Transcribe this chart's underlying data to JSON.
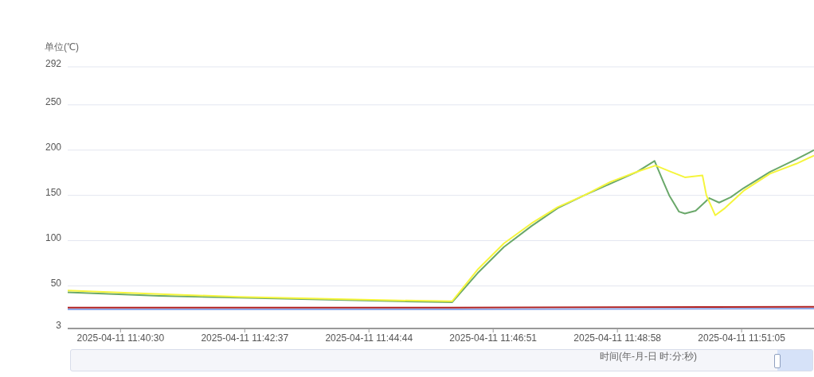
{
  "chart_data": {
    "type": "line",
    "ylabel": "单位(℃)",
    "xlabel": "时间(年-月-日 时:分:秒)",
    "xlim": [
      "2025-04-11T11:39:36",
      "2025-04-11T11:52:19"
    ],
    "xticks": [
      {
        "value": "2025-04-11T11:40:30",
        "label": "2025-04-11 11:40:30"
      },
      {
        "value": "2025-04-11T11:42:37",
        "label": "2025-04-11 11:42:37"
      },
      {
        "value": "2025-04-11T11:44:44",
        "label": "2025-04-11 11:44:44"
      },
      {
        "value": "2025-04-11T11:46:51",
        "label": "2025-04-11 11:46:51"
      },
      {
        "value": "2025-04-11T11:48:58",
        "label": "2025-04-11 11:48:58"
      },
      {
        "value": "2025-04-11T11:51:05",
        "label": "2025-04-11 11:51:05"
      }
    ],
    "ylim": [
      3,
      292
    ],
    "yticks": [
      3,
      50,
      100,
      150,
      200,
      250,
      292
    ],
    "grid": "y",
    "marker": "none",
    "line_style": "solid",
    "series": [
      {
        "color": "#6aa86a",
        "x": [
          "2025-04-11T11:39:36",
          "2025-04-11T11:41:10",
          "2025-04-11T11:42:31",
          "2025-04-11T11:43:53",
          "2025-04-11T11:45:14",
          "2025-04-11T11:46:09",
          "2025-04-11T11:46:35",
          "2025-04-11T11:47:02",
          "2025-04-11T11:47:30",
          "2025-04-11T11:47:57",
          "2025-04-11T11:48:24",
          "2025-04-11T11:48:51",
          "2025-04-11T11:49:18",
          "2025-04-11T11:49:36",
          "2025-04-11T11:49:45",
          "2025-04-11T11:49:51",
          "2025-04-11T11:50:01",
          "2025-04-11T11:50:07",
          "2025-04-11T11:50:18",
          "2025-04-11T11:50:32",
          "2025-04-11T11:50:42",
          "2025-04-11T11:50:54",
          "2025-04-11T11:51:07",
          "2025-04-11T11:51:34",
          "2025-04-11T11:52:01",
          "2025-04-11T11:52:19"
        ],
        "values": [
          43,
          39,
          37,
          35,
          33,
          32,
          64,
          93,
          116,
          136,
          150,
          163,
          176,
          188,
          165,
          150,
          132,
          130,
          133,
          147,
          142,
          148,
          158,
          176,
          190,
          200
        ]
      },
      {
        "color": "#f5f53c",
        "x": [
          "2025-04-11T11:39:36",
          "2025-04-11T11:41:10",
          "2025-04-11T11:42:31",
          "2025-04-11T11:43:53",
          "2025-04-11T11:45:14",
          "2025-04-11T11:46:09",
          "2025-04-11T11:46:35",
          "2025-04-11T11:47:02",
          "2025-04-11T11:47:30",
          "2025-04-11T11:47:57",
          "2025-04-11T11:48:24",
          "2025-04-11T11:48:51",
          "2025-04-11T11:49:18",
          "2025-04-11T11:49:37",
          "2025-04-11T11:49:53",
          "2025-04-11T11:50:07",
          "2025-04-11T11:50:25",
          "2025-04-11T11:50:29",
          "2025-04-11T11:50:38",
          "2025-04-11T11:50:48",
          "2025-04-11T11:51:07",
          "2025-04-11T11:51:34",
          "2025-04-11T11:52:01",
          "2025-04-11T11:52:19"
        ],
        "values": [
          45,
          41,
          38,
          36,
          34,
          33,
          68,
          97,
          119,
          137,
          150,
          165,
          176,
          183,
          176,
          170,
          172,
          150,
          128,
          136,
          155,
          174,
          185,
          194
        ]
      },
      {
        "color": "#b02020",
        "x": [
          "2025-04-11T11:39:36",
          "2025-04-11T11:46:09",
          "2025-04-11T11:52:19"
        ],
        "values": [
          26,
          26,
          27
        ]
      },
      {
        "color": "#8fa8e8",
        "x": [
          "2025-04-11T11:39:36",
          "2025-04-11T11:46:09",
          "2025-04-11T11:52:19"
        ],
        "values": [
          24,
          24,
          25
        ]
      }
    ]
  }
}
